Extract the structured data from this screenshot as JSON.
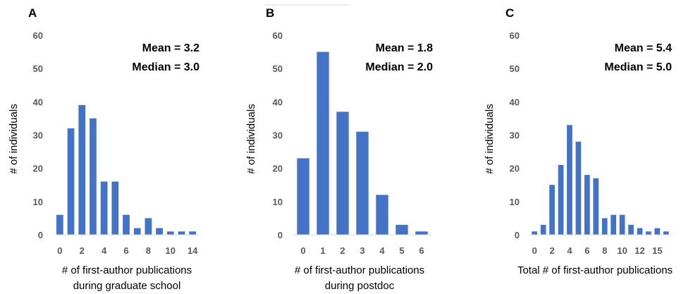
{
  "chart_data": [
    {
      "type": "bar",
      "panel": "A",
      "categories": [
        "0",
        "1",
        "2",
        "3",
        "4",
        "5",
        "6",
        "7",
        "8",
        "9",
        "10",
        "11",
        "14"
      ],
      "tick_labels": [
        "0",
        "2",
        "4",
        "6",
        "8",
        "10",
        "14"
      ],
      "values": [
        6,
        32,
        39,
        35,
        16,
        16,
        6,
        2,
        5,
        2,
        1,
        1,
        1
      ],
      "ylabel": "# of individuals",
      "xlabel": [
        "# of first-author publications",
        "during graduate school"
      ],
      "ylim": [
        0,
        60
      ],
      "yticks": [
        "0",
        "10",
        "20",
        "30",
        "40",
        "50",
        "60"
      ],
      "annotations": [
        "Mean = 3.2",
        "Median = 3.0"
      ]
    },
    {
      "type": "bar",
      "panel": "B",
      "categories": [
        "0",
        "1",
        "2",
        "3",
        "4",
        "5",
        "6"
      ],
      "tick_labels": [
        "0",
        "1",
        "2",
        "3",
        "4",
        "5",
        "6"
      ],
      "values": [
        23,
        55,
        37,
        31,
        12,
        3,
        1
      ],
      "ylabel": "# of individuals",
      "xlabel": [
        "# of first-author publications",
        "during postdoc"
      ],
      "ylim": [
        0,
        60
      ],
      "yticks": [
        "0",
        "10",
        "20",
        "30",
        "40",
        "50",
        "60"
      ],
      "annotations": [
        "Mean = 1.8",
        "Median = 2.0"
      ]
    },
    {
      "type": "bar",
      "panel": "C",
      "categories": [
        "0",
        "1",
        "2",
        "3",
        "4",
        "5",
        "6",
        "7",
        "8",
        "9",
        "10",
        "11",
        "12",
        "13",
        "15",
        "16"
      ],
      "tick_labels": [
        "0",
        "2",
        "4",
        "6",
        "8",
        "10",
        "12",
        "15"
      ],
      "values": [
        1,
        3,
        15,
        21,
        33,
        28,
        18,
        17,
        5,
        6,
        6,
        3,
        2,
        1,
        2,
        1
      ],
      "ylabel": "# of individuals",
      "xlabel": [
        "Total # of first-author publications"
      ],
      "ylim": [
        0,
        60
      ],
      "yticks": [
        "0",
        "10",
        "20",
        "30",
        "40",
        "50",
        "60"
      ],
      "annotations": [
        "Mean = 5.4",
        "Median = 5.0"
      ]
    }
  ]
}
